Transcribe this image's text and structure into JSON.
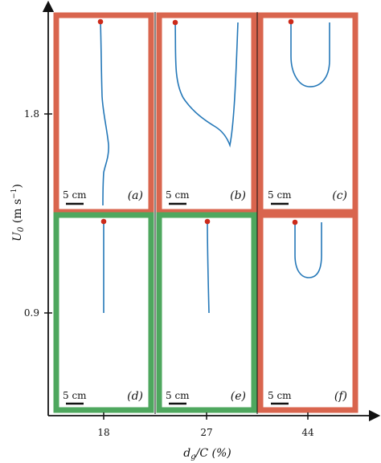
{
  "figure": {
    "y_axis": {
      "label_main": "U",
      "label_sub": "0",
      "label_unit": " (m s",
      "label_sup": "−1",
      "label_close": ")",
      "ticks": [
        "1.8",
        "0.9"
      ]
    },
    "x_axis": {
      "label_d": "d",
      "label_sub": "g",
      "label_rest": "/C (%)",
      "ticks": [
        "18",
        "27",
        "44"
      ]
    },
    "scale_bar_label": "5 cm",
    "outcome_colors": {
      "red": "#d9654e",
      "green": "#4ea75e"
    },
    "trace_color": "#2578b8",
    "origin_dot_color": "#cc2a1a",
    "panels": [
      {
        "label": "(a)",
        "outcome": "red"
      },
      {
        "label": "(b)",
        "outcome": "red"
      },
      {
        "label": "(c)",
        "outcome": "red"
      },
      {
        "label": "(d)",
        "outcome": "green"
      },
      {
        "label": "(e)",
        "outcome": "green"
      },
      {
        "label": "(f)",
        "outcome": "red"
      }
    ]
  }
}
